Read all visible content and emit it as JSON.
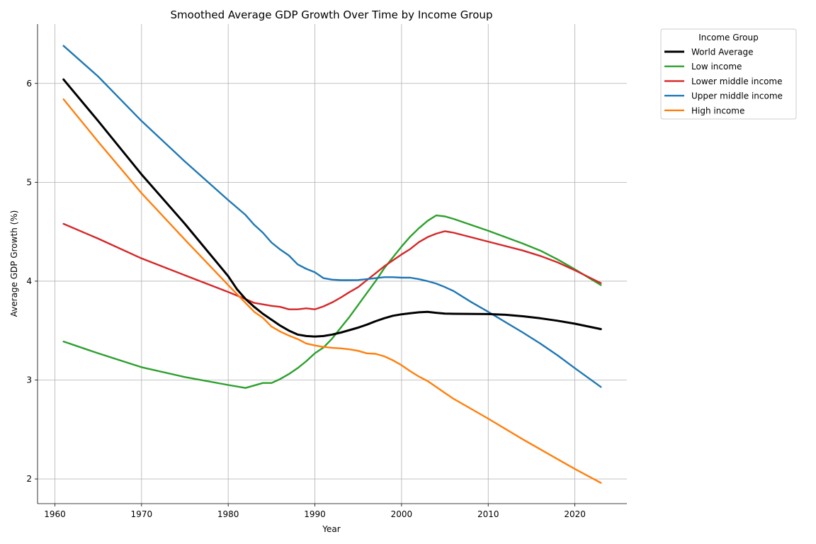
{
  "chart_data": {
    "type": "line",
    "title": "Smoothed Average GDP Growth Over Time by Income Group",
    "xlabel": "Year",
    "ylabel": "Average GDP Growth (%)",
    "xlim": [
      1958,
      2026
    ],
    "ylim": [
      1.75,
      6.6
    ],
    "xticks": [
      1960,
      1970,
      1980,
      1990,
      2000,
      2010,
      2020
    ],
    "yticks": [
      2,
      3,
      4,
      5,
      6
    ],
    "grid": true,
    "legend": {
      "title": "Income Group",
      "placement": "outside-top-right"
    },
    "series": [
      {
        "name": "World Average",
        "color": "#000000",
        "width": 3,
        "points": [
          [
            1961,
            6.04
          ],
          [
            1965,
            5.62
          ],
          [
            1970,
            5.08
          ],
          [
            1975,
            4.58
          ],
          [
            1980,
            4.05
          ],
          [
            1981,
            3.92
          ],
          [
            1982,
            3.82
          ],
          [
            1983,
            3.74
          ],
          [
            1984,
            3.67
          ],
          [
            1985,
            3.61
          ],
          [
            1986,
            3.55
          ],
          [
            1987,
            3.5
          ],
          [
            1988,
            3.46
          ],
          [
            1989,
            3.445
          ],
          [
            1990,
            3.44
          ],
          [
            1991,
            3.445
          ],
          [
            1992,
            3.46
          ],
          [
            1993,
            3.48
          ],
          [
            1994,
            3.505
          ],
          [
            1995,
            3.53
          ],
          [
            1996,
            3.56
          ],
          [
            1997,
            3.595
          ],
          [
            1998,
            3.625
          ],
          [
            1999,
            3.65
          ],
          [
            2000,
            3.665
          ],
          [
            2001,
            3.675
          ],
          [
            2002,
            3.685
          ],
          [
            2003,
            3.69
          ],
          [
            2004,
            3.68
          ],
          [
            2005,
            3.672
          ],
          [
            2006,
            3.67
          ],
          [
            2010,
            3.667
          ],
          [
            2012,
            3.66
          ],
          [
            2014,
            3.645
          ],
          [
            2016,
            3.625
          ],
          [
            2018,
            3.6
          ],
          [
            2020,
            3.57
          ],
          [
            2023,
            3.515
          ]
        ]
      },
      {
        "name": "Low income",
        "color": "#2ca02c",
        "width": 2.4,
        "points": [
          [
            1961,
            3.39
          ],
          [
            1965,
            3.27
          ],
          [
            1970,
            3.13
          ],
          [
            1975,
            3.03
          ],
          [
            1980,
            2.95
          ],
          [
            1982,
            2.92
          ],
          [
            1983,
            2.945
          ],
          [
            1984,
            2.97
          ],
          [
            1985,
            2.97
          ],
          [
            1986,
            3.01
          ],
          [
            1987,
            3.06
          ],
          [
            1988,
            3.12
          ],
          [
            1989,
            3.19
          ],
          [
            1990,
            3.27
          ],
          [
            1991,
            3.33
          ],
          [
            1992,
            3.42
          ],
          [
            1993,
            3.53
          ],
          [
            1994,
            3.64
          ],
          [
            1995,
            3.76
          ],
          [
            1996,
            3.88
          ],
          [
            1997,
            4.0
          ],
          [
            1998,
            4.13
          ],
          [
            1999,
            4.24
          ],
          [
            2000,
            4.35
          ],
          [
            2001,
            4.45
          ],
          [
            2002,
            4.535
          ],
          [
            2003,
            4.61
          ],
          [
            2004,
            4.665
          ],
          [
            2005,
            4.655
          ],
          [
            2006,
            4.63
          ],
          [
            2010,
            4.51
          ],
          [
            2014,
            4.38
          ],
          [
            2016,
            4.31
          ],
          [
            2018,
            4.22
          ],
          [
            2020,
            4.12
          ],
          [
            2023,
            3.96
          ]
        ]
      },
      {
        "name": "Lower middle income",
        "color": "#d62728",
        "width": 2.4,
        "points": [
          [
            1961,
            4.58
          ],
          [
            1965,
            4.43
          ],
          [
            1970,
            4.23
          ],
          [
            1975,
            4.06
          ],
          [
            1980,
            3.89
          ],
          [
            1982,
            3.82
          ],
          [
            1983,
            3.78
          ],
          [
            1984,
            3.765
          ],
          [
            1985,
            3.75
          ],
          [
            1986,
            3.74
          ],
          [
            1987,
            3.715
          ],
          [
            1988,
            3.715
          ],
          [
            1989,
            3.725
          ],
          [
            1990,
            3.715
          ],
          [
            1991,
            3.745
          ],
          [
            1992,
            3.785
          ],
          [
            1993,
            3.835
          ],
          [
            1994,
            3.89
          ],
          [
            1995,
            3.94
          ],
          [
            1996,
            4.01
          ],
          [
            1997,
            4.08
          ],
          [
            1998,
            4.15
          ],
          [
            1999,
            4.21
          ],
          [
            2000,
            4.27
          ],
          [
            2001,
            4.325
          ],
          [
            2002,
            4.395
          ],
          [
            2003,
            4.445
          ],
          [
            2004,
            4.48
          ],
          [
            2005,
            4.505
          ],
          [
            2006,
            4.49
          ],
          [
            2010,
            4.4
          ],
          [
            2014,
            4.31
          ],
          [
            2016,
            4.255
          ],
          [
            2018,
            4.19
          ],
          [
            2020,
            4.11
          ],
          [
            2023,
            3.98
          ]
        ]
      },
      {
        "name": "Upper middle income",
        "color": "#1f77b4",
        "width": 2.4,
        "points": [
          [
            1961,
            6.38
          ],
          [
            1965,
            6.07
          ],
          [
            1970,
            5.62
          ],
          [
            1975,
            5.21
          ],
          [
            1980,
            4.82
          ],
          [
            1982,
            4.67
          ],
          [
            1983,
            4.57
          ],
          [
            1984,
            4.49
          ],
          [
            1985,
            4.39
          ],
          [
            1986,
            4.32
          ],
          [
            1987,
            4.26
          ],
          [
            1988,
            4.17
          ],
          [
            1989,
            4.125
          ],
          [
            1990,
            4.09
          ],
          [
            1991,
            4.03
          ],
          [
            1992,
            4.015
          ],
          [
            1993,
            4.01
          ],
          [
            1994,
            4.01
          ],
          [
            1995,
            4.012
          ],
          [
            1996,
            4.02
          ],
          [
            1997,
            4.03
          ],
          [
            1998,
            4.04
          ],
          [
            1999,
            4.04
          ],
          [
            2000,
            4.035
          ],
          [
            2001,
            4.035
          ],
          [
            2002,
            4.02
          ],
          [
            2003,
            4.0
          ],
          [
            2004,
            3.975
          ],
          [
            2005,
            3.94
          ],
          [
            2006,
            3.9
          ],
          [
            2008,
            3.79
          ],
          [
            2010,
            3.69
          ],
          [
            2014,
            3.48
          ],
          [
            2016,
            3.37
          ],
          [
            2018,
            3.25
          ],
          [
            2020,
            3.12
          ],
          [
            2023,
            2.93
          ]
        ]
      },
      {
        "name": "High income",
        "color": "#ff7f0e",
        "width": 2.4,
        "points": [
          [
            1961,
            5.84
          ],
          [
            1965,
            5.41
          ],
          [
            1970,
            4.89
          ],
          [
            1975,
            4.42
          ],
          [
            1980,
            3.96
          ],
          [
            1981,
            3.87
          ],
          [
            1982,
            3.78
          ],
          [
            1983,
            3.69
          ],
          [
            1984,
            3.63
          ],
          [
            1985,
            3.54
          ],
          [
            1986,
            3.49
          ],
          [
            1987,
            3.45
          ],
          [
            1988,
            3.415
          ],
          [
            1989,
            3.37
          ],
          [
            1990,
            3.35
          ],
          [
            1991,
            3.335
          ],
          [
            1992,
            3.325
          ],
          [
            1993,
            3.32
          ],
          [
            1994,
            3.31
          ],
          [
            1995,
            3.295
          ],
          [
            1996,
            3.27
          ],
          [
            1997,
            3.265
          ],
          [
            1998,
            3.24
          ],
          [
            1999,
            3.2
          ],
          [
            2000,
            3.15
          ],
          [
            2001,
            3.09
          ],
          [
            2002,
            3.035
          ],
          [
            2003,
            2.99
          ],
          [
            2004,
            2.93
          ],
          [
            2005,
            2.87
          ],
          [
            2006,
            2.81
          ],
          [
            2008,
            2.71
          ],
          [
            2010,
            2.61
          ],
          [
            2014,
            2.4
          ],
          [
            2016,
            2.3
          ],
          [
            2018,
            2.2
          ],
          [
            2020,
            2.1
          ],
          [
            2023,
            1.96
          ]
        ]
      }
    ]
  }
}
